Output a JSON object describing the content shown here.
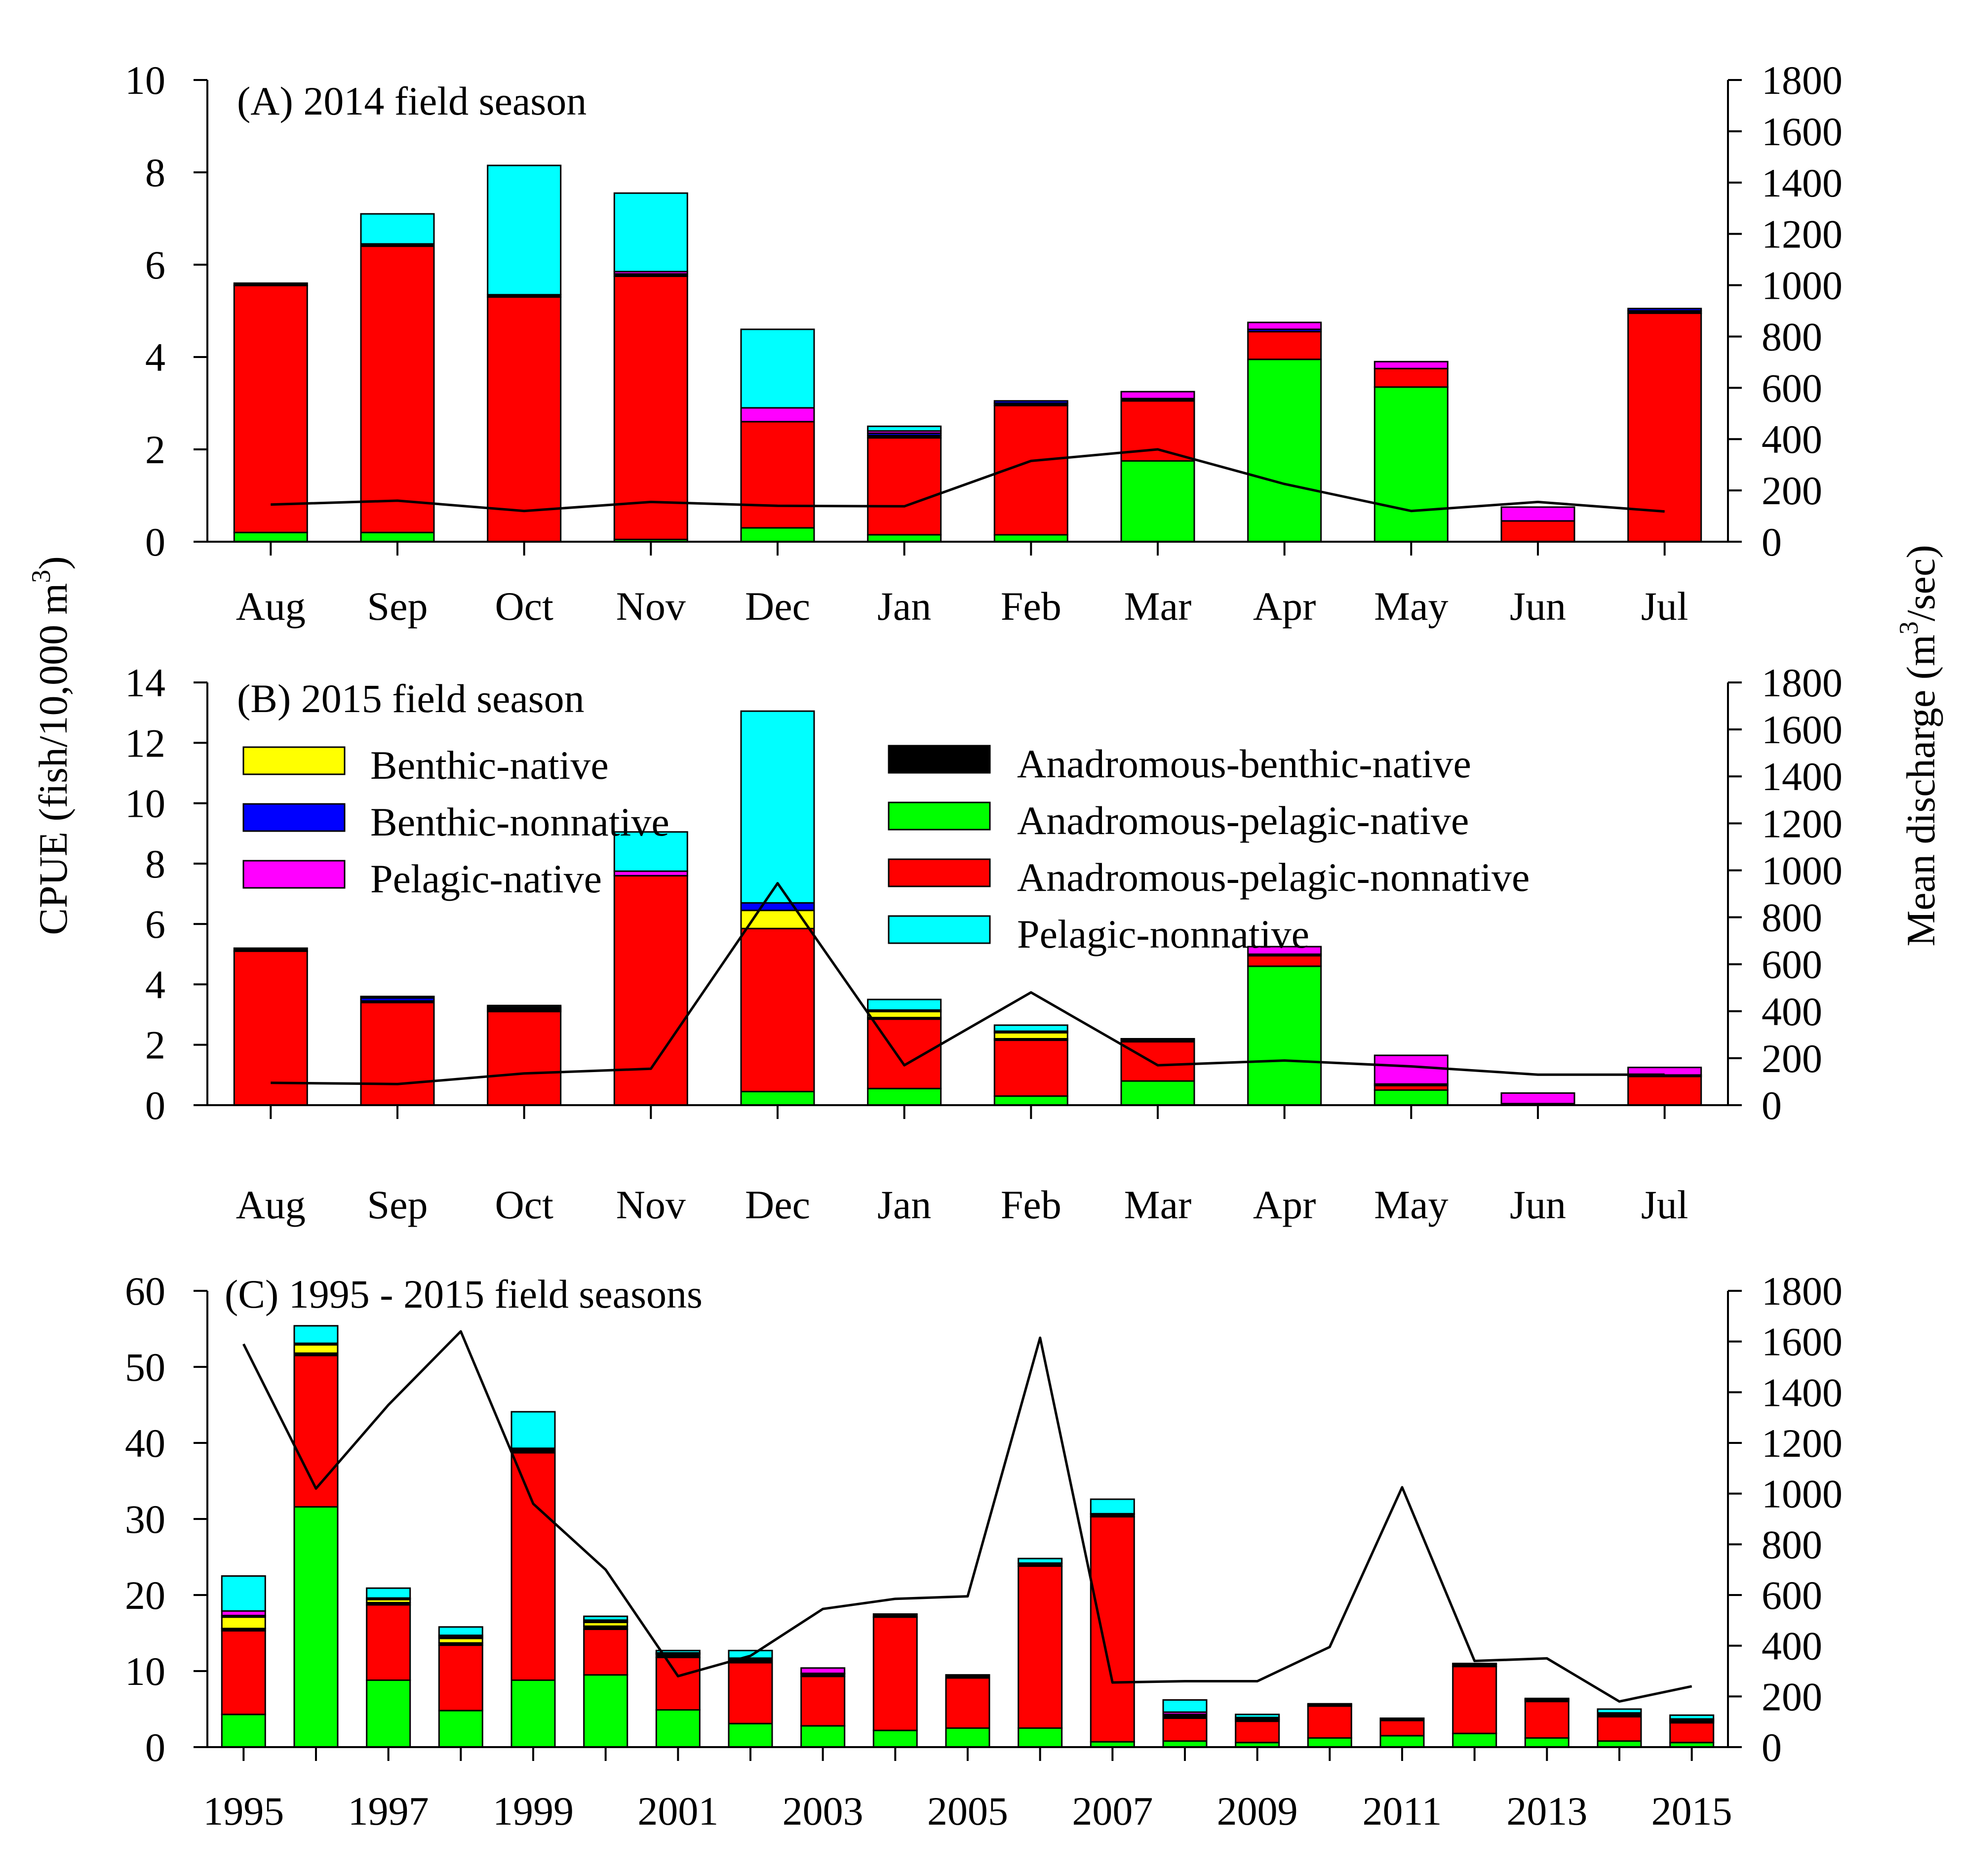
{
  "figure": {
    "y_axis_left_title": "CPUE (fish/10,000 m",
    "y_axis_left_sup": "3",
    "y_axis_left_close": ")",
    "y_axis_right_title": "Mean discharge (m",
    "y_axis_right_sup": "3",
    "y_axis_right_close": "/sec)"
  },
  "legend": {
    "entries": [
      {
        "label": "Benthic-native",
        "color": "#ffff00"
      },
      {
        "label": "Benthic-nonnative",
        "color": "#0000ff"
      },
      {
        "label": "Pelagic-native",
        "color": "#ff00ff"
      },
      {
        "label": "Anadromous-benthic-native",
        "color": "#000000"
      },
      {
        "label": "Anadromous-pelagic-native",
        "color": "#00ff00"
      },
      {
        "label": "Anadromous-pelagic-nonnative",
        "color": "#ff0000"
      },
      {
        "label": "Pelagic-nonnative",
        "color": "#00ffff"
      }
    ]
  },
  "chart_data": [
    {
      "type": "bar",
      "stacked": true,
      "title": "(A) 2014 field season",
      "categories": [
        "Aug",
        "Sep",
        "Oct",
        "Nov",
        "Dec",
        "Jan",
        "Feb",
        "Mar",
        "Apr",
        "May",
        "Jun",
        "Jul"
      ],
      "ylim": [
        0,
        10
      ],
      "yticks": [
        0,
        2,
        4,
        6,
        8,
        10
      ],
      "y2lim": [
        0,
        1800
      ],
      "y2ticks": [
        0,
        200,
        400,
        600,
        800,
        1000,
        1200,
        1400,
        1600,
        1800
      ],
      "series": [
        {
          "color": "#00ff00",
          "values": [
            0.2,
            0.2,
            0,
            0.05,
            0.3,
            0.15,
            0.15,
            1.75,
            3.95,
            3.35,
            0,
            0
          ]
        },
        {
          "color": "#ff0000",
          "values": [
            5.35,
            6.2,
            5.3,
            5.7,
            2.3,
            2.1,
            2.8,
            1.3,
            0.6,
            0.4,
            0.45,
            4.95
          ]
        },
        {
          "color": "#000000",
          "values": [
            0.05,
            0.05,
            0.05,
            0.05,
            0,
            0.05,
            0.05,
            0.05,
            0,
            0,
            0,
            0.05
          ]
        },
        {
          "color": "#ffff00",
          "values": [
            0,
            0,
            0,
            0,
            0,
            0,
            0,
            0,
            0,
            0,
            0,
            0
          ]
        },
        {
          "color": "#0000ff",
          "values": [
            0,
            0,
            0,
            0,
            0,
            0.05,
            0.05,
            0,
            0.05,
            0,
            0,
            0.05
          ]
        },
        {
          "color": "#ff00ff",
          "values": [
            0,
            0,
            0,
            0.05,
            0.3,
            0.05,
            0,
            0.15,
            0.15,
            0.15,
            0.3,
            0
          ]
        },
        {
          "color": "#00ffff",
          "values": [
            0,
            0.65,
            2.8,
            1.7,
            1.7,
            0.1,
            0,
            0,
            0,
            0,
            0,
            0
          ]
        }
      ],
      "line": {
        "color": "#000000",
        "values": [
          145,
          160,
          120,
          155,
          140,
          138,
          315,
          360,
          225,
          120,
          155,
          118
        ]
      }
    },
    {
      "type": "bar",
      "stacked": true,
      "title": "(B) 2015 field season",
      "categories": [
        "Aug",
        "Sep",
        "Oct",
        "Nov",
        "Dec",
        "Jan",
        "Feb",
        "Mar",
        "Apr",
        "May",
        "Jun",
        "Jul"
      ],
      "ylim": [
        0,
        14
      ],
      "yticks": [
        0,
        2,
        4,
        6,
        8,
        10,
        12,
        14
      ],
      "y2lim": [
        0,
        1800
      ],
      "y2ticks": [
        0,
        200,
        400,
        600,
        800,
        1000,
        1200,
        1400,
        1600,
        1800
      ],
      "series": [
        {
          "color": "#00ff00",
          "values": [
            0,
            0,
            0,
            0,
            0.45,
            0.55,
            0.3,
            0.8,
            4.6,
            0.5,
            0,
            0
          ]
        },
        {
          "color": "#ff0000",
          "values": [
            5.1,
            3.4,
            3.1,
            7.6,
            5.4,
            2.3,
            1.85,
            1.3,
            0.35,
            0.15,
            0.05,
            0.95
          ]
        },
        {
          "color": "#000000",
          "values": [
            0.1,
            0.05,
            0.05,
            0,
            0,
            0.05,
            0.05,
            0.05,
            0.05,
            0,
            0,
            0.05
          ]
        },
        {
          "color": "#ffff00",
          "values": [
            0,
            0,
            0,
            0,
            0.6,
            0.2,
            0.2,
            0,
            0,
            0,
            0,
            0
          ]
        },
        {
          "color": "#0000ff",
          "values": [
            0,
            0.1,
            0.05,
            0,
            0.25,
            0.05,
            0.05,
            0,
            0,
            0.05,
            0,
            0
          ]
        },
        {
          "color": "#ff00ff",
          "values": [
            0,
            0,
            0.05,
            0.15,
            0,
            0,
            0,
            0.05,
            0.25,
            0.95,
            0.35,
            0.25
          ]
        },
        {
          "color": "#00ffff",
          "values": [
            0,
            0.05,
            0.05,
            1.3,
            6.35,
            0.35,
            0.2,
            0,
            0,
            0,
            0,
            0
          ]
        }
      ],
      "line": {
        "color": "#000000",
        "values": [
          95,
          90,
          135,
          155,
          945,
          170,
          480,
          170,
          190,
          165,
          130,
          130
        ]
      }
    },
    {
      "type": "bar",
      "stacked": true,
      "title": "(C) 1995 - 2015 field seasons",
      "categories": [
        "1995",
        "1996",
        "1997",
        "1998",
        "1999",
        "2000",
        "2001",
        "2002",
        "2003",
        "2004",
        "2005",
        "2006",
        "2007",
        "2008",
        "2009",
        "2010",
        "2011",
        "2012",
        "2013",
        "2014",
        "2015"
      ],
      "xtick_labels": [
        "1995",
        "",
        "1997",
        "",
        "1999",
        "",
        "2001",
        "",
        "2003",
        "",
        "2005",
        "",
        "2007",
        "",
        "2009",
        "",
        "2011",
        "",
        "2013",
        "",
        "2015"
      ],
      "ylim": [
        0,
        60
      ],
      "yticks": [
        0,
        10,
        20,
        30,
        40,
        50,
        60
      ],
      "y2lim": [
        0,
        1800
      ],
      "y2ticks": [
        0,
        200,
        400,
        600,
        800,
        1000,
        1200,
        1400,
        1600,
        1800
      ],
      "series": [
        {
          "color": "#00ff00",
          "values": [
            4.3,
            31.6,
            8.8,
            4.8,
            8.8,
            9.5,
            4.9,
            3.1,
            2.8,
            2.2,
            2.5,
            2.5,
            0.7,
            0.8,
            0.6,
            1.2,
            1.5,
            1.8,
            1.2,
            0.8,
            0.6
          ]
        },
        {
          "color": "#ff0000",
          "values": [
            11.0,
            19.9,
            9.9,
            8.6,
            29.9,
            6.0,
            6.9,
            8.0,
            6.5,
            14.9,
            6.6,
            21.3,
            29.6,
            3.0,
            2.8,
            4.2,
            2.0,
            8.8,
            4.8,
            3.2,
            2.6
          ]
        },
        {
          "color": "#000000",
          "values": [
            0.3,
            0.3,
            0.3,
            0.3,
            0.3,
            0.4,
            0.4,
            0.3,
            0.3,
            0.4,
            0.3,
            0.3,
            0.3,
            0.3,
            0.2,
            0.2,
            0.2,
            0.3,
            0.2,
            0.2,
            0.2
          ]
        },
        {
          "color": "#ffff00",
          "values": [
            1.5,
            1.1,
            0.4,
            0.6,
            0,
            0.5,
            0,
            0,
            0,
            0,
            0,
            0,
            0,
            0,
            0,
            0,
            0,
            0,
            0,
            0,
            0
          ]
        },
        {
          "color": "#0000ff",
          "values": [
            0.2,
            0.1,
            0.1,
            0.2,
            0.2,
            0.1,
            0.1,
            0.1,
            0.1,
            0,
            0.1,
            0,
            0,
            0.2,
            0.1,
            0,
            0.1,
            0.1,
            0.1,
            0.1,
            0.1
          ]
        },
        {
          "color": "#ff00ff",
          "values": [
            0.6,
            0.1,
            0.1,
            0.2,
            0.1,
            0.2,
            0.1,
            0.2,
            0.7,
            0,
            0,
            0.1,
            0.1,
            0.3,
            0.2,
            0.1,
            0,
            0,
            0.1,
            0.2,
            0.2
          ]
        },
        {
          "color": "#00ffff",
          "values": [
            4.6,
            2.3,
            1.3,
            1.1,
            4.8,
            0.5,
            0.3,
            1.0,
            0,
            0,
            0,
            0.6,
            1.9,
            1.6,
            0.4,
            0,
            0,
            0,
            0,
            0.5,
            0.5
          ]
        }
      ],
      "line": {
        "color": "#000000",
        "values": [
          1590,
          1020,
          1350,
          1640,
          960,
          700,
          280,
          360,
          545,
          585,
          595,
          1615,
          255,
          260,
          260,
          395,
          1025,
          340,
          350,
          180,
          240
        ]
      }
    }
  ]
}
